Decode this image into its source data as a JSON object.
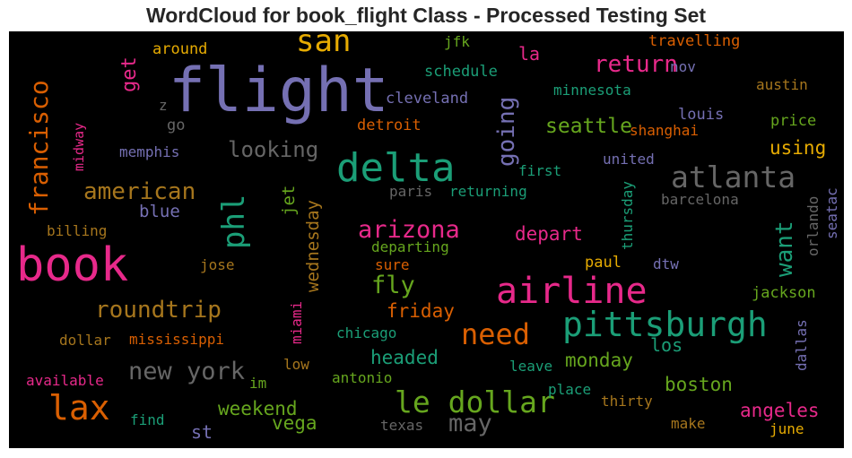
{
  "title": "WordCloud for book_flight Class - Processed Testing Set",
  "words": [
    {
      "text": "flight",
      "color": "#7570b3"
    },
    {
      "text": "book",
      "color": "#e7298a"
    },
    {
      "text": "delta",
      "color": "#1b9e77"
    },
    {
      "text": "airline",
      "color": "#e7298a"
    },
    {
      "text": "pittsburgh",
      "color": "#1b9e77"
    },
    {
      "text": "san",
      "color": "#e6ab02"
    },
    {
      "text": "lax",
      "color": "#d95f02"
    },
    {
      "text": "le dollar",
      "color": "#66a61e"
    },
    {
      "text": "atlanta",
      "color": "#666666"
    },
    {
      "text": "francisco",
      "color": "#d95f02"
    },
    {
      "text": "phl",
      "color": "#1b9e77"
    },
    {
      "text": "american",
      "color": "#a6761d"
    },
    {
      "text": "arizona",
      "color": "#e7298a"
    },
    {
      "text": "need",
      "color": "#d95f02"
    },
    {
      "text": "return",
      "color": "#e7298a"
    },
    {
      "text": "new york",
      "color": "#666666"
    },
    {
      "text": "roundtrip",
      "color": "#a6761d"
    },
    {
      "text": "fly",
      "color": "#66a61e"
    },
    {
      "text": "may",
      "color": "#666666"
    },
    {
      "text": "going",
      "color": "#7570b3"
    },
    {
      "text": "want",
      "color": "#1b9e77"
    },
    {
      "text": "looking",
      "color": "#666666"
    },
    {
      "text": "seattle",
      "color": "#66a61e"
    },
    {
      "text": "get",
      "color": "#e7298a"
    },
    {
      "text": "headed",
      "color": "#1b9e77"
    },
    {
      "text": "monday",
      "color": "#66a61e"
    },
    {
      "text": "weekend",
      "color": "#66a61e"
    },
    {
      "text": "vega",
      "color": "#66a61e"
    },
    {
      "text": "depart",
      "color": "#e7298a"
    },
    {
      "text": "friday",
      "color": "#d95f02"
    },
    {
      "text": "boston",
      "color": "#66a61e"
    },
    {
      "text": "angeles",
      "color": "#e7298a"
    },
    {
      "text": "using",
      "color": "#e6ab02"
    },
    {
      "text": "wednesday",
      "color": "#a6761d"
    },
    {
      "text": "blue",
      "color": "#7570b3"
    },
    {
      "text": "jet",
      "color": "#66a61e"
    },
    {
      "text": "la",
      "color": "#e7298a"
    },
    {
      "text": "los",
      "color": "#1b9e77"
    },
    {
      "text": "st",
      "color": "#7570b3"
    },
    {
      "text": "jackson",
      "color": "#66a61e"
    },
    {
      "text": "shanghai",
      "color": "#d95f02"
    },
    {
      "text": "louis",
      "color": "#7570b3"
    },
    {
      "text": "price",
      "color": "#66a61e"
    },
    {
      "text": "austin",
      "color": "#a6761d"
    },
    {
      "text": "minnesota",
      "color": "#1b9e77"
    },
    {
      "text": "cleveland",
      "color": "#7570b3"
    },
    {
      "text": "schedule",
      "color": "#1b9e77"
    },
    {
      "text": "travelling",
      "color": "#d95f02"
    },
    {
      "text": "nov",
      "color": "#7570b3"
    },
    {
      "text": "jfk",
      "color": "#66a61e"
    },
    {
      "text": "around",
      "color": "#e6ab02"
    },
    {
      "text": "detroit",
      "color": "#d95f02"
    },
    {
      "text": "go",
      "color": "#666666"
    },
    {
      "text": "z",
      "color": "#666666"
    },
    {
      "text": "memphis",
      "color": "#7570b3"
    },
    {
      "text": "midway",
      "color": "#e7298a"
    },
    {
      "text": "first",
      "color": "#1b9e77"
    },
    {
      "text": "united",
      "color": "#7570b3"
    },
    {
      "text": "paris",
      "color": "#666666"
    },
    {
      "text": "returning",
      "color": "#1b9e77"
    },
    {
      "text": "barcelona",
      "color": "#666666"
    },
    {
      "text": "thursday",
      "color": "#1b9e77"
    },
    {
      "text": "orlando",
      "color": "#666666"
    },
    {
      "text": "seatac",
      "color": "#7570b3"
    },
    {
      "text": "billing",
      "color": "#a6761d"
    },
    {
      "text": "departing",
      "color": "#66a61e"
    },
    {
      "text": "sure",
      "color": "#d95f02"
    },
    {
      "text": "jose",
      "color": "#a6761d"
    },
    {
      "text": "paul",
      "color": "#e6ab02"
    },
    {
      "text": "dtw",
      "color": "#7570b3"
    },
    {
      "text": "miami",
      "color": "#e7298a"
    },
    {
      "text": "chicago",
      "color": "#1b9e77"
    },
    {
      "text": "dollar",
      "color": "#a6761d"
    },
    {
      "text": "mississippi",
      "color": "#d95f02"
    },
    {
      "text": "dallas",
      "color": "#7570b3"
    },
    {
      "text": "available",
      "color": "#e7298a"
    },
    {
      "text": "im",
      "color": "#66a61e"
    },
    {
      "text": "low",
      "color": "#a6761d"
    },
    {
      "text": "antonio",
      "color": "#66a61e"
    },
    {
      "text": "leave",
      "color": "#1b9e77"
    },
    {
      "text": "place",
      "color": "#1b9e77"
    },
    {
      "text": "thirty",
      "color": "#a6761d"
    },
    {
      "text": "find",
      "color": "#1b9e77"
    },
    {
      "text": "texas",
      "color": "#666666"
    },
    {
      "text": "make",
      "color": "#a6761d"
    },
    {
      "text": "june",
      "color": "#e6ab02"
    }
  ]
}
